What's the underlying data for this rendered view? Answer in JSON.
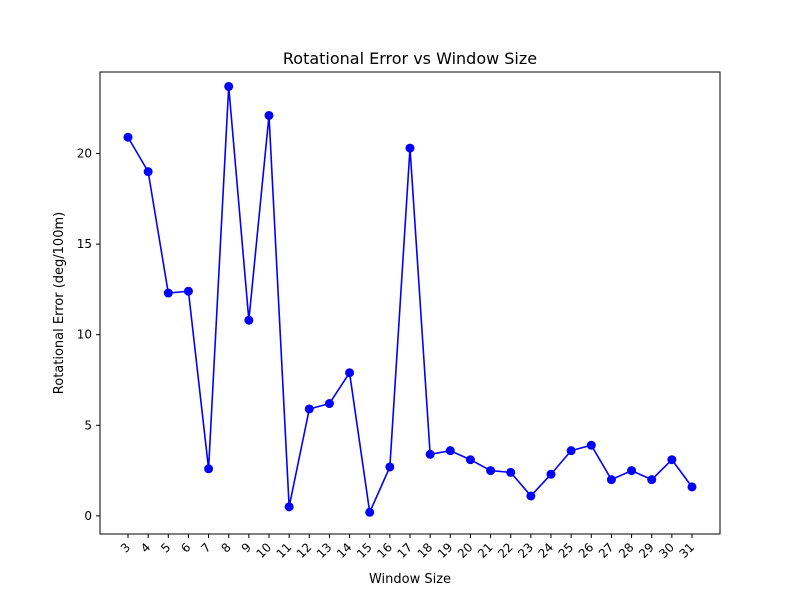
{
  "chart_data": {
    "type": "line",
    "title": "Rotational Error vs Window Size",
    "xlabel": "Window Size",
    "ylabel": "Rotational Error (deg/100m)",
    "ylim": [
      -1,
      24.5
    ],
    "yticks": [
      0,
      5,
      10,
      15,
      20
    ],
    "grid": false,
    "x": [
      "3",
      "4",
      "5",
      "6",
      "7",
      "8",
      "9",
      "10",
      "11",
      "12",
      "13",
      "14",
      "15",
      "16",
      "17",
      "18",
      "19",
      "20",
      "21",
      "22",
      "23",
      "24",
      "25",
      "26",
      "27",
      "28",
      "29",
      "30",
      "31"
    ],
    "series": [
      {
        "color": "#0000ff",
        "marker": "circle",
        "values": [
          20.9,
          19.0,
          12.3,
          12.4,
          2.6,
          23.7,
          10.8,
          22.1,
          0.5,
          5.9,
          6.2,
          7.9,
          0.2,
          2.7,
          20.3,
          3.4,
          3.6,
          3.1,
          2.5,
          2.4,
          1.1,
          2.3,
          3.6,
          3.9,
          2.0,
          2.5,
          2.0,
          3.1,
          1.6
        ]
      }
    ]
  }
}
